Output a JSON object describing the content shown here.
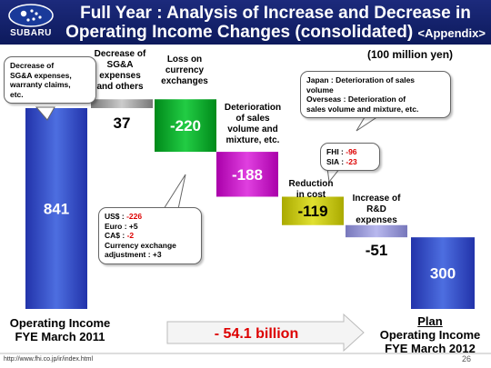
{
  "header": {
    "brand": "SUBARU",
    "title_line1": "Full Year : Analysis of Increase and Decrease in",
    "title_line2": "Operating Income Changes (consolidated)",
    "title_tag": "<Appendix>"
  },
  "unit_label": "(100 million yen)",
  "colors": {
    "header_bg": "#15236e",
    "blue": "#3355cc",
    "gray": "#9a9a9a",
    "green": "#00aa22",
    "magenta": "#cc00cc",
    "yellow": "#cccc00",
    "lavender": "#9999dd",
    "arrow_fill": "#f4f4f4"
  },
  "chart_data": {
    "type": "waterfall",
    "categories": [
      "Operating Income FYE March 2011",
      "Decrease of SG&A expenses and others",
      "Loss on currency exchanges",
      "Deterioration of sales volume and mixture, etc.",
      "Reduction in cost",
      "Increase of R&D expenses",
      "Plan Operating Income FYE March 2012"
    ],
    "steps": [
      {
        "label": "841",
        "value": 841,
        "kind": "total",
        "color": "blue"
      },
      {
        "label": "37",
        "value": 37,
        "kind": "delta",
        "color": "gray"
      },
      {
        "label": "-220",
        "value": -220,
        "kind": "delta",
        "color": "green"
      },
      {
        "label": "-188",
        "value": -188,
        "kind": "delta",
        "color": "magenta"
      },
      {
        "label": "-119",
        "value": -119,
        "kind": "delta",
        "color": "yellow"
      },
      {
        "label": "-51",
        "value": -51,
        "kind": "delta",
        "color": "lavender"
      },
      {
        "label": "300",
        "value": 300,
        "kind": "total",
        "color": "blue"
      }
    ],
    "summary": "- 54.1 billion"
  },
  "labels": {
    "sga": "Decrease of\nSG&A\nexpenses\nand others",
    "fx": "Loss on\ncurrency\nexchanges",
    "sales": "Deterioration\nof sales\nvolume and\nmixture, etc.",
    "cost": "Reduction\nin cost",
    "rd": "Increase of\nR&D\nexpenses"
  },
  "bottom": {
    "left_line1": "Operating Income",
    "left_line2": "FYE March 2011",
    "right_plan": "Plan",
    "right_line1": "Operating Income",
    "right_line2": "FYE March 2012"
  },
  "callouts": {
    "sga_note": "Decrease of\nSG&A expenses,\nwarranty claims,\netc.",
    "sales_japan": "Japan : Deterioration of sales\nvolume",
    "sales_overseas": "Overseas : Deterioration of\nsales volume and mixture, etc.",
    "cost_fhi_label": "FHI : ",
    "cost_fhi_val": "-96",
    "cost_sia_label": "SIA : ",
    "cost_sia_val": "-23",
    "fx_us_label": "US$  : ",
    "fx_us_val": "-226",
    "fx_euro": "Euro : +5",
    "fx_ca_label": "CA$  : ",
    "fx_ca_val": "-2",
    "fx_other": "Currency exchange\nadjustment : +3"
  },
  "footer": {
    "url": "http://www.fhi.co.jp/ir/index.html",
    "page": "26"
  }
}
